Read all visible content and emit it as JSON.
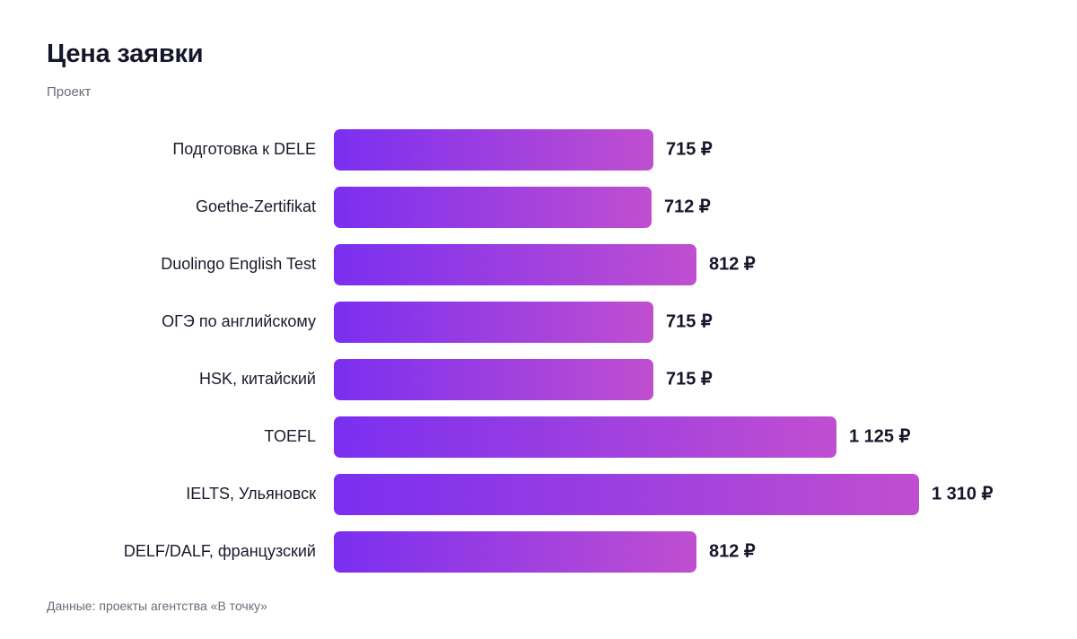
{
  "header": {
    "title": "Цена заявки",
    "subtitle": "Проект"
  },
  "footer": {
    "source": "Данные: проекты агентства «В точку»"
  },
  "colors": {
    "bar_gradient_start": "#7a2ff0",
    "bar_gradient_end": "#c04fd0",
    "text_primary": "#16162b",
    "text_secondary": "#6b6b7b"
  },
  "chart_data": {
    "type": "bar",
    "orientation": "horizontal",
    "title": "Цена заявки",
    "subtitle": "Проект",
    "categories": [
      "Подготовка к DELE",
      "Goethe-Zertifikat",
      "Duolingo English Test",
      "ОГЭ по английскому",
      "HSK, китайский",
      "TOEFL",
      "IELTS, Ульяновск",
      "DELF/DALF, французский"
    ],
    "values": [
      715,
      712,
      812,
      715,
      715,
      1125,
      1310,
      812
    ],
    "value_labels": [
      "715 ₽",
      "712 ₽",
      "812 ₽",
      "715 ₽",
      "715 ₽",
      "1 125 ₽",
      "1 310 ₽",
      "812 ₽"
    ],
    "unit": "₽",
    "xlim": [
      0,
      1310
    ],
    "grid": false,
    "legend": "none"
  }
}
